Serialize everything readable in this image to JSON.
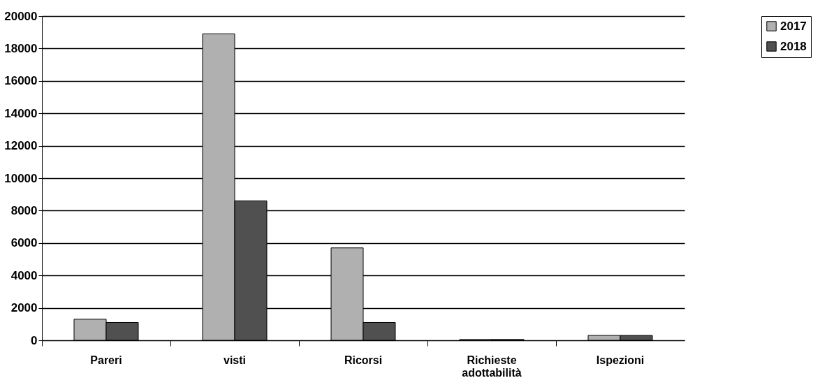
{
  "chart_data": {
    "type": "bar",
    "categories": [
      "Pareri",
      "visti",
      "Ricorsi",
      "Richieste adottabilità",
      "Ispezioni"
    ],
    "series": [
      {
        "name": "2017",
        "color": "#b0b0b0",
        "values": [
          1300,
          18900,
          5700,
          50,
          300
        ]
      },
      {
        "name": "2018",
        "color": "#505050",
        "values": [
          1100,
          8600,
          1100,
          50,
          300
        ]
      }
    ],
    "ylim": [
      0,
      20000
    ],
    "yticks": [
      0,
      2000,
      4000,
      6000,
      8000,
      10000,
      12000,
      14000,
      16000,
      18000,
      20000
    ],
    "grid": "y",
    "legend": "right"
  }
}
